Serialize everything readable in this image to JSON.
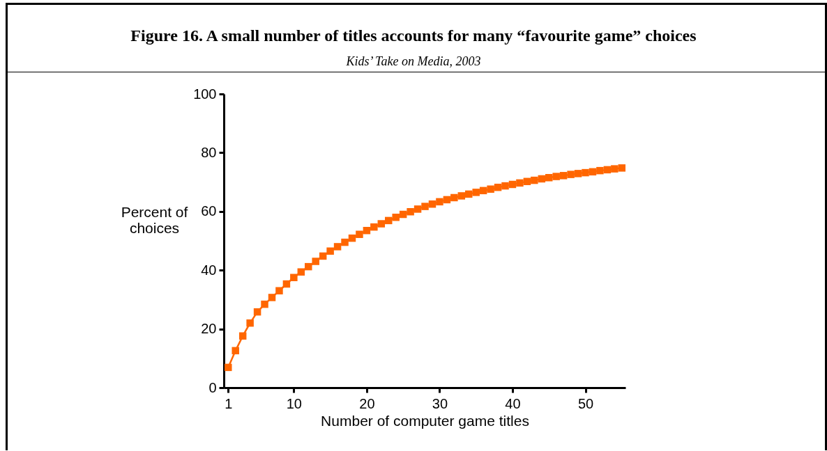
{
  "chart_data": {
    "type": "line",
    "title": "Figure 16. A small number of titles accounts for many “favourite game” choices",
    "subtitle": "Kids’ Take on Media, 2003",
    "xlabel": "Number of computer game titles",
    "ylabel": "Percent of choices",
    "x": [
      1,
      2,
      3,
      4,
      5,
      6,
      7,
      8,
      9,
      10,
      11,
      12,
      13,
      14,
      15,
      16,
      17,
      18,
      19,
      20,
      21,
      22,
      23,
      24,
      25,
      26,
      27,
      28,
      29,
      30,
      31,
      32,
      33,
      34,
      35,
      36,
      37,
      38,
      39,
      40,
      41,
      42,
      43,
      44,
      45,
      46,
      47,
      48,
      49,
      50,
      51,
      52,
      53,
      54,
      55
    ],
    "series": [
      {
        "color": "#ff6600",
        "values": [
          6.9,
          12.6,
          17.6,
          22,
          25.8,
          28.4,
          30.7,
          33,
          35.3,
          37.5,
          39.4,
          41.2,
          43,
          44.8,
          46.5,
          48,
          49.5,
          50.9,
          52.2,
          53.5,
          54.7,
          55.8,
          56.9,
          58,
          59,
          59.9,
          60.8,
          61.7,
          62.5,
          63.3,
          64,
          64.7,
          65.3,
          65.9,
          66.5,
          67.1,
          67.6,
          68.2,
          68.7,
          69.2,
          69.7,
          70.2,
          70.6,
          71.1,
          71.5,
          71.9,
          72.2,
          72.6,
          72.9,
          73.2,
          73.5,
          73.9,
          74.2,
          74.5,
          74.8
        ]
      }
    ],
    "xlim": [
      0.4,
      55.5
    ],
    "xticks": [
      1,
      10,
      20,
      30,
      40,
      50
    ],
    "ylim": [
      0,
      100
    ],
    "yticks": [
      0,
      20,
      40,
      60,
      80,
      100
    ],
    "grid": false,
    "legend": false,
    "marker": "square",
    "line_style": "solid"
  }
}
